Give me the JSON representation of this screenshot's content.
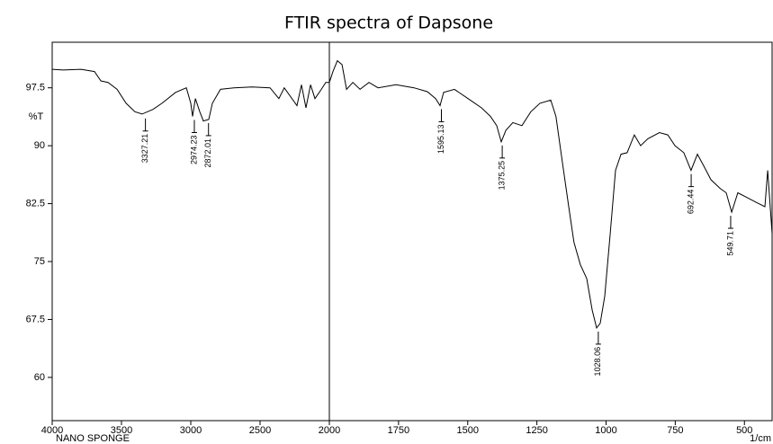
{
  "chart_data": {
    "type": "line",
    "title": "FTIR spectra of Dapsone",
    "y_label": "%T",
    "x_label": "1/cm",
    "sample_label": "NANO SPONGE",
    "color": "#000000",
    "xlim": [
      4000,
      400
    ],
    "x_break": 2000,
    "xticks": [
      4000,
      3500,
      3000,
      2500,
      2000,
      1750,
      1500,
      1250,
      1000,
      750,
      500
    ],
    "ylim": [
      54.4,
      103.4
    ],
    "yticks": [
      60,
      67.5,
      75,
      82.5,
      90,
      97.5
    ],
    "x": [
      4000,
      3922,
      3792,
      3695,
      3649,
      3597,
      3532,
      3467,
      3403,
      3351,
      3273,
      3208,
      3110,
      3032,
      3000,
      2987,
      2967,
      2935,
      2909,
      2870,
      2844,
      2786,
      2688,
      2558,
      2428,
      2364,
      2325,
      2234,
      2201,
      2169,
      2136,
      2104,
      2058,
      2026,
      2000,
      1987,
      1971,
      1954,
      1938,
      1915,
      1889,
      1857,
      1824,
      1759,
      1694,
      1646,
      1616,
      1600,
      1587,
      1548,
      1499,
      1450,
      1418,
      1395,
      1379,
      1362,
      1337,
      1304,
      1272,
      1239,
      1200,
      1181,
      1158,
      1135,
      1116,
      1093,
      1070,
      1050,
      1034,
      1021,
      1005,
      985,
      966,
      946,
      924,
      898,
      875,
      849,
      807,
      777,
      751,
      719,
      693,
      670,
      647,
      621,
      589,
      566,
      546,
      524,
      491,
      459,
      426,
      416,
      400
    ],
    "values": [
      99.9,
      99.8,
      99.9,
      99.6,
      98.4,
      98.2,
      97.3,
      95.5,
      94.4,
      94.1,
      94.7,
      95.5,
      96.9,
      97.5,
      95.5,
      93.8,
      96.1,
      94.4,
      93.2,
      93.4,
      95.5,
      97.3,
      97.5,
      97.6,
      97.5,
      96.1,
      97.5,
      95.2,
      97.9,
      94.9,
      97.9,
      96.1,
      97.3,
      98.2,
      98.2,
      99.6,
      101.0,
      100.5,
      97.3,
      98.2,
      97.3,
      98.2,
      97.5,
      97.9,
      97.5,
      97.0,
      96.1,
      95.2,
      96.9,
      97.3,
      96.1,
      94.9,
      93.8,
      92.6,
      90.5,
      92.0,
      93.0,
      92.6,
      94.4,
      95.5,
      95.9,
      93.8,
      87.9,
      82.1,
      77.5,
      74.6,
      72.8,
      68.7,
      66.4,
      67.0,
      70.5,
      78.6,
      86.8,
      88.9,
      89.1,
      91.4,
      90.0,
      90.9,
      91.7,
      91.4,
      90.0,
      89.1,
      86.8,
      88.9,
      87.4,
      85.6,
      84.5,
      83.9,
      81.4,
      83.9,
      83.3,
      82.7,
      82.1,
      86.8,
      78.6
    ],
    "annotations": [
      {
        "x": 3327.21,
        "y": 94.0,
        "label": "3327.21"
      },
      {
        "x": 2974.23,
        "y": 93.8,
        "label": "2974.23"
      },
      {
        "x": 2872.01,
        "y": 93.4,
        "label": "2872.01"
      },
      {
        "x": 1595.13,
        "y": 95.2,
        "label": "1595.13"
      },
      {
        "x": 1375.25,
        "y": 90.5,
        "label": "1375.25"
      },
      {
        "x": 1028.06,
        "y": 66.4,
        "label": "1028.06"
      },
      {
        "x": 692.44,
        "y": 86.8,
        "label": "692.44"
      },
      {
        "x": 549.71,
        "y": 81.4,
        "label": "549.71"
      }
    ]
  }
}
